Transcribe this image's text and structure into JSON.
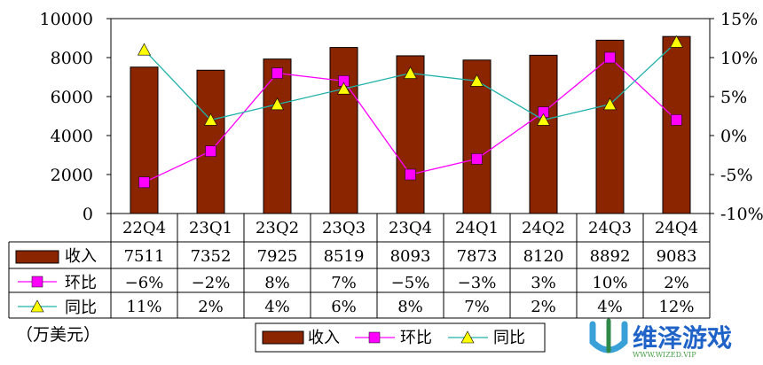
{
  "chart_data": {
    "type": "bar",
    "categories": [
      "22Q4",
      "23Q1",
      "23Q2",
      "23Q3",
      "23Q4",
      "24Q1",
      "24Q2",
      "24Q3",
      "24Q4"
    ],
    "series": [
      {
        "name": "收入",
        "type": "bar",
        "axis": "left",
        "color": "#8B2500",
        "values": [
          7511,
          7352,
          7925,
          8519,
          8093,
          7873,
          8120,
          8892,
          9083
        ],
        "labels": [
          "7511",
          "7352",
          "7925",
          "8519",
          "8093",
          "7873",
          "8120",
          "8892",
          "9083"
        ]
      },
      {
        "name": "环比",
        "type": "line",
        "axis": "right",
        "color": "#FF00FF",
        "values": [
          -6,
          -2,
          8,
          7,
          -5,
          -3,
          3,
          10,
          2
        ],
        "labels": [
          "−6%",
          "−2%",
          "8%",
          "7%",
          "−5%",
          "−3%",
          "3%",
          "10%",
          "2%"
        ]
      },
      {
        "name": "同比",
        "type": "line",
        "axis": "right",
        "color": "#20B2AA",
        "marker_color": "#FFFF00",
        "values": [
          11,
          2,
          4,
          6,
          8,
          7,
          2,
          4,
          12
        ],
        "labels": [
          "11%",
          "2%",
          "4%",
          "6%",
          "8%",
          "7%",
          "2%",
          "4%",
          "12%"
        ]
      }
    ],
    "y_left": {
      "min": 0,
      "max": 10000,
      "ticks": [
        "0",
        "2000",
        "4000",
        "6000",
        "8000",
        "10000"
      ]
    },
    "y_right": {
      "min": -10,
      "max": 15,
      "ticks": [
        "-10%",
        "-5%",
        "0%",
        "5%",
        "10%",
        "15%"
      ]
    },
    "unit_note": "（万美元）",
    "legend": {
      "position": "bottom",
      "items": [
        "收入",
        "环比",
        "同比"
      ]
    },
    "grid": false
  },
  "watermark": {
    "text": "维泽游戏",
    "url": "WWW.WIZED.VIP"
  }
}
